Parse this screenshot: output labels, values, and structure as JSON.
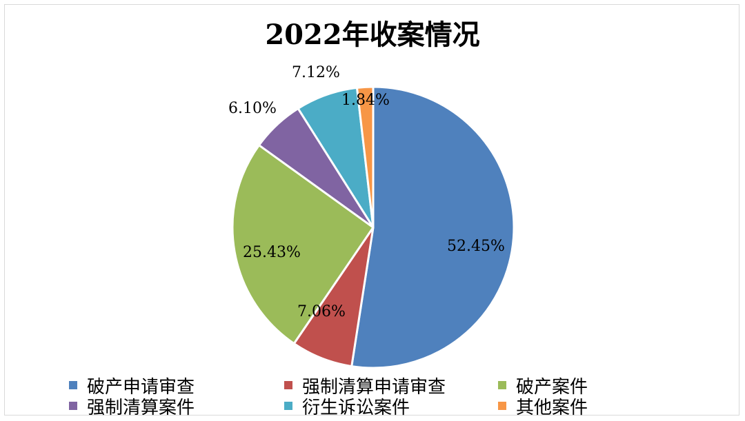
{
  "chart_data": {
    "type": "pie",
    "title": "2022年收案情况",
    "categories": [
      "破产申请审查",
      "强制清算申请审查",
      "破产案件",
      "强制清算案件",
      "衍生诉讼案件",
      "其他案件"
    ],
    "values": [
      52.45,
      7.06,
      25.43,
      6.1,
      7.12,
      1.84
    ],
    "labels": [
      "52.45%",
      "7.06%",
      "25.43%",
      "6.10%",
      "7.12%",
      "1.84%"
    ],
    "colors": [
      "#4f81bd",
      "#c0504d",
      "#9bbb59",
      "#8064a2",
      "#4bacc6",
      "#f79646"
    ],
    "legend_position": "bottom"
  }
}
